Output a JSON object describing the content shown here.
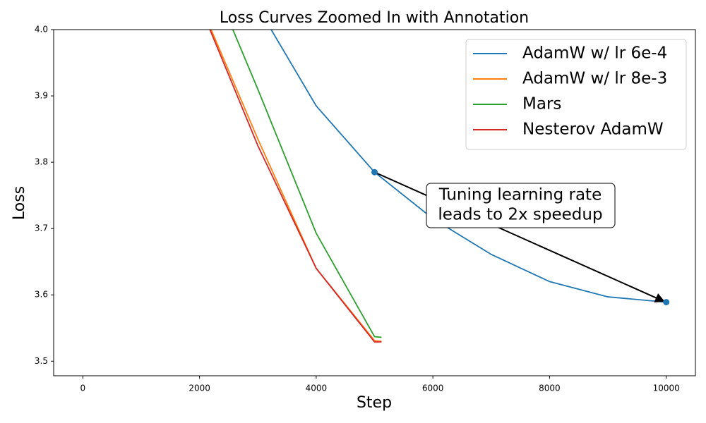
{
  "chart_data": {
    "type": "line",
    "title": "Loss Curves Zoomed In with Annotation",
    "x_label": "Step",
    "y_label": "Loss",
    "xlim": [
      -500,
      10500
    ],
    "ylim": [
      3.478,
      4.0
    ],
    "xticks": [
      0,
      2000,
      4000,
      6000,
      8000,
      10000
    ],
    "yticks": [
      3.5,
      3.6,
      3.7,
      3.8,
      3.9,
      {
        "value": 4.0,
        "label": "4.0"
      }
    ],
    "legend": "upper right",
    "series": [
      {
        "name": "AdamW w/ lr 6e-4",
        "color": "#1f77b4",
        "x": [
          3000,
          4000,
          5000,
          6000,
          7000,
          8000,
          9000,
          10000
        ],
        "values": [
          4.034,
          3.885,
          3.785,
          3.715,
          3.661,
          3.62,
          3.597,
          3.589
        ]
      },
      {
        "name": "AdamW w/ lr 8e-3",
        "color": "#ff7f0e",
        "x": [
          2000,
          3000,
          4000,
          5000,
          5120
        ],
        "values": [
          4.041,
          3.835,
          3.64,
          3.531,
          3.53
        ]
      },
      {
        "name": "Mars",
        "color": "#2ca02c",
        "x": [
          2000,
          3000,
          4000,
          5000,
          5120
        ],
        "values": [
          4.12,
          3.91,
          3.693,
          3.537,
          3.536
        ]
      },
      {
        "name": "Nesterov AdamW",
        "color": "#d62728",
        "x": [
          2000,
          3000,
          4000,
          5000,
          5120
        ],
        "values": [
          4.038,
          3.825,
          3.64,
          3.529,
          3.529
        ]
      }
    ],
    "annotation": {
      "text": [
        "Tuning learning rate",
        "leads to 2x speedup"
      ],
      "from": {
        "x": 5000,
        "y": 3.785
      },
      "to": {
        "x": 10000,
        "y": 3.589
      }
    }
  }
}
